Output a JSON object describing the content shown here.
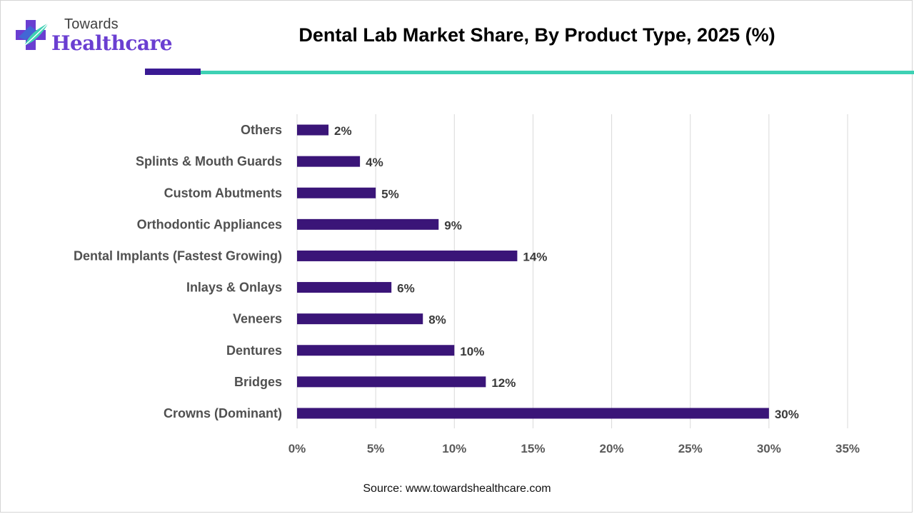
{
  "brand": {
    "small_text": "Towards",
    "big_text": "Healthcare",
    "colors": {
      "purple": "#6a3ed1",
      "blue": "#3b6fd6",
      "teal": "#3ed1b4"
    }
  },
  "header": {
    "title": "Dental Lab Market Share, By Product Type, 2025 (%)"
  },
  "chart_data": {
    "type": "bar",
    "orientation": "horizontal",
    "title": "Dental Lab Market Share, By Product Type, 2025 (%)",
    "categories": [
      "Others",
      "Splints & Mouth Guards",
      "Custom Abutments",
      "Orthodontic Appliances",
      "Dental Implants (Fastest Growing)",
      "Inlays & Onlays",
      "Veneers",
      "Dentures",
      "Bridges",
      "Crowns (Dominant)"
    ],
    "values": [
      2,
      4,
      5,
      9,
      14,
      6,
      8,
      10,
      12,
      30
    ],
    "value_labels": [
      "2%",
      "4%",
      "5%",
      "9%",
      "14%",
      "6%",
      "8%",
      "10%",
      "12%",
      "30%"
    ],
    "xlim": [
      0,
      35
    ],
    "xticks": [
      0,
      5,
      10,
      15,
      20,
      25,
      30,
      35
    ],
    "xtick_labels": [
      "0%",
      "5%",
      "10%",
      "15%",
      "20%",
      "25%",
      "30%",
      "35%"
    ],
    "xlabel": "",
    "ylabel": "",
    "grid": "vertical",
    "bar_color": "#3a1578",
    "grid_color": "#d9d9d9"
  },
  "footer": {
    "source": "Source: www.towardshealthcare.com"
  }
}
